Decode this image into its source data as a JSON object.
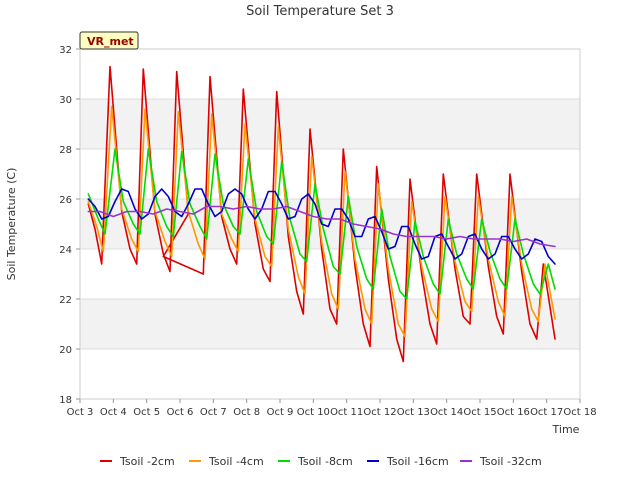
{
  "chart_data": {
    "type": "line",
    "title": "Soil Temperature Set 3",
    "xlabel": "Time",
    "ylabel": "Soil Temperature (C)",
    "ylim": [
      18,
      32
    ],
    "yticks": [
      "18",
      "20",
      "22",
      "24",
      "26",
      "28",
      "30",
      "32"
    ],
    "xlim": [
      3,
      18
    ],
    "xticks": [
      "Oct 3",
      "Oct 4",
      "Oct 5",
      "Oct 6",
      "Oct 7",
      "Oct 8",
      "Oct 9",
      "Oct 10",
      "Oct 11",
      "Oct 12",
      "Oct 13",
      "Oct 14",
      "Oct 15",
      "Oct 16",
      "Oct 17",
      "Oct 18"
    ],
    "annotation": "VR_met",
    "grid": "horizontal bands",
    "legend_position": "bottom",
    "series": [
      {
        "name": "Tsoil -2cm",
        "color": "#dd0000",
        "x": [
          3.25,
          3.45,
          3.65,
          3.9,
          4.25,
          4.5,
          4.7,
          4.9,
          5.25,
          5.5,
          5.7,
          5.9,
          6.25,
          5.5,
          6.7,
          6.9,
          7.25,
          7.5,
          7.7,
          7.9,
          8.25,
          8.5,
          8.7,
          8.9,
          9.25,
          9.5,
          9.7,
          9.9,
          10.25,
          10.5,
          10.7,
          10.9,
          11.25,
          11.5,
          11.7,
          11.9,
          12.25,
          12.5,
          12.7,
          12.9,
          13.25,
          13.5,
          13.7,
          13.9,
          14.25,
          14.5,
          14.7,
          14.9,
          15.25,
          15.5,
          15.7,
          15.9,
          16.25,
          16.5,
          16.7,
          16.9,
          17.25
        ],
        "y": [
          25.8,
          24.8,
          23.4,
          31.3,
          25.5,
          24.0,
          23.4,
          31.2,
          25.4,
          23.8,
          23.1,
          31.1,
          25.4,
          23.7,
          23.0,
          30.9,
          25.3,
          24.0,
          23.4,
          30.4,
          25.0,
          23.2,
          22.7,
          30.3,
          24.5,
          22.3,
          21.4,
          28.8,
          24.0,
          21.6,
          21.0,
          28.0,
          23.3,
          21.0,
          20.1,
          27.3,
          22.8,
          20.4,
          19.5,
          26.8,
          23.0,
          21.0,
          20.2,
          27.0,
          23.2,
          21.3,
          21.0,
          27.0,
          23.3,
          21.3,
          20.6,
          27.0,
          23.1,
          21.0,
          20.4,
          23.4,
          20.4
        ]
      },
      {
        "name": "Tsoil -4cm",
        "color": "#ff9900",
        "x": [
          3.25,
          3.5,
          3.7,
          3.95,
          4.25,
          4.55,
          4.75,
          4.95,
          5.25,
          5.55,
          5.75,
          5.95,
          6.25,
          6.55,
          6.75,
          6.95,
          7.25,
          7.55,
          7.75,
          7.95,
          8.25,
          8.55,
          8.75,
          8.95,
          9.25,
          9.55,
          9.75,
          9.95,
          10.25,
          10.55,
          10.75,
          10.95,
          11.25,
          11.55,
          11.75,
          11.95,
          12.25,
          12.55,
          12.75,
          12.95,
          13.25,
          13.55,
          13.75,
          13.95,
          14.25,
          14.55,
          14.75,
          14.95,
          15.25,
          15.55,
          15.75,
          15.95,
          16.25,
          16.55,
          16.75,
          16.95,
          17.25
        ],
        "y": [
          25.9,
          24.9,
          23.9,
          29.7,
          25.6,
          24.4,
          23.9,
          29.6,
          25.5,
          24.3,
          23.7,
          29.5,
          25.5,
          24.2,
          23.6,
          29.4,
          25.4,
          24.4,
          23.9,
          29.0,
          25.2,
          23.7,
          23.3,
          28.9,
          24.8,
          22.9,
          22.2,
          27.7,
          24.3,
          22.2,
          21.6,
          27.1,
          23.6,
          21.6,
          21.0,
          26.6,
          23.2,
          21.0,
          20.5,
          25.9,
          23.3,
          21.6,
          21.1,
          26.1,
          23.5,
          21.9,
          21.5,
          26.1,
          23.6,
          21.9,
          21.3,
          26.1,
          23.4,
          21.6,
          21.1,
          23.4,
          21.2
        ]
      },
      {
        "name": "Tsoil -8cm",
        "color": "#00dd00",
        "x": [
          3.25,
          3.55,
          3.75,
          4.05,
          4.3,
          4.6,
          4.8,
          5.05,
          5.3,
          5.6,
          5.8,
          6.05,
          6.3,
          6.6,
          6.8,
          7.05,
          7.3,
          7.6,
          7.8,
          8.05,
          8.3,
          8.6,
          8.8,
          9.05,
          9.3,
          9.6,
          9.8,
          10.05,
          10.3,
          10.6,
          10.8,
          11.05,
          11.3,
          11.6,
          11.8,
          12.05,
          12.3,
          12.6,
          12.8,
          13.05,
          13.3,
          13.6,
          13.8,
          14.05,
          14.3,
          14.6,
          14.8,
          15.05,
          15.3,
          15.6,
          15.8,
          16.05,
          16.3,
          16.6,
          16.8,
          17.05,
          17.25
        ],
        "y": [
          26.2,
          25.2,
          24.6,
          28.0,
          25.9,
          25.0,
          24.6,
          28.0,
          25.9,
          24.9,
          24.5,
          27.9,
          25.8,
          24.9,
          24.4,
          27.8,
          25.8,
          24.9,
          24.6,
          27.6,
          25.5,
          24.5,
          24.2,
          27.5,
          25.2,
          23.8,
          23.5,
          26.6,
          24.8,
          23.3,
          23.0,
          26.1,
          24.1,
          22.8,
          22.4,
          25.6,
          23.7,
          22.3,
          22.0,
          25.1,
          23.7,
          22.6,
          22.2,
          25.2,
          23.8,
          22.8,
          22.4,
          25.2,
          23.9,
          22.8,
          22.4,
          25.2,
          23.8,
          22.6,
          22.2,
          23.4,
          22.4
        ]
      },
      {
        "name": "Tsoil -16cm",
        "color": "#0000cc",
        "x": [
          3.25,
          3.45,
          3.65,
          3.85,
          4.05,
          4.25,
          4.45,
          4.65,
          4.85,
          5.05,
          5.25,
          5.45,
          5.65,
          5.85,
          6.05,
          6.25,
          6.45,
          6.65,
          6.85,
          7.05,
          7.25,
          7.45,
          7.65,
          7.85,
          8.05,
          8.25,
          8.45,
          8.65,
          8.85,
          9.05,
          9.25,
          9.45,
          9.65,
          9.85,
          10.05,
          10.25,
          10.45,
          10.65,
          10.85,
          11.05,
          11.25,
          11.45,
          11.65,
          11.85,
          12.05,
          12.25,
          12.45,
          12.65,
          12.85,
          13.05,
          13.25,
          13.45,
          13.65,
          13.85,
          14.05,
          14.25,
          14.45,
          14.65,
          14.85,
          15.05,
          15.25,
          15.45,
          15.65,
          15.85,
          16.05,
          16.25,
          16.45,
          16.65,
          16.85,
          17.05,
          17.25
        ],
        "y": [
          26.0,
          25.7,
          25.2,
          25.3,
          25.9,
          26.4,
          26.3,
          25.6,
          25.2,
          25.4,
          26.1,
          26.4,
          26.1,
          25.5,
          25.3,
          25.8,
          26.4,
          26.4,
          25.8,
          25.3,
          25.5,
          26.2,
          26.4,
          26.2,
          25.6,
          25.2,
          25.6,
          26.3,
          26.3,
          25.8,
          25.2,
          25.3,
          26.0,
          26.2,
          25.8,
          25.0,
          24.9,
          25.6,
          25.6,
          25.2,
          24.5,
          24.5,
          25.2,
          25.3,
          24.7,
          24.0,
          24.1,
          24.9,
          24.9,
          24.2,
          23.6,
          23.7,
          24.5,
          24.6,
          24.1,
          23.6,
          23.8,
          24.5,
          24.6,
          24.0,
          23.6,
          23.8,
          24.5,
          24.5,
          24.0,
          23.6,
          23.8,
          24.4,
          24.3,
          23.7,
          23.4
        ]
      },
      {
        "name": "Tsoil -32cm",
        "color": "#9933cc",
        "x": [
          3.25,
          3.6,
          4.0,
          4.4,
          4.8,
          5.2,
          5.6,
          6.0,
          6.4,
          6.8,
          7.2,
          7.6,
          8.0,
          8.4,
          8.8,
          9.2,
          9.6,
          10.0,
          10.4,
          10.8,
          11.2,
          11.6,
          12.0,
          12.4,
          12.8,
          13.2,
          13.6,
          14.0,
          14.4,
          14.8,
          15.2,
          15.6,
          16.0,
          16.4,
          16.8,
          17.25
        ],
        "y": [
          25.5,
          25.5,
          25.3,
          25.5,
          25.5,
          25.4,
          25.6,
          25.5,
          25.4,
          25.7,
          25.7,
          25.6,
          25.7,
          25.6,
          25.6,
          25.7,
          25.5,
          25.3,
          25.2,
          25.2,
          25.0,
          24.9,
          24.8,
          24.6,
          24.5,
          24.5,
          24.5,
          24.4,
          24.5,
          24.4,
          24.4,
          24.4,
          24.3,
          24.4,
          24.2,
          24.1
        ]
      }
    ]
  }
}
